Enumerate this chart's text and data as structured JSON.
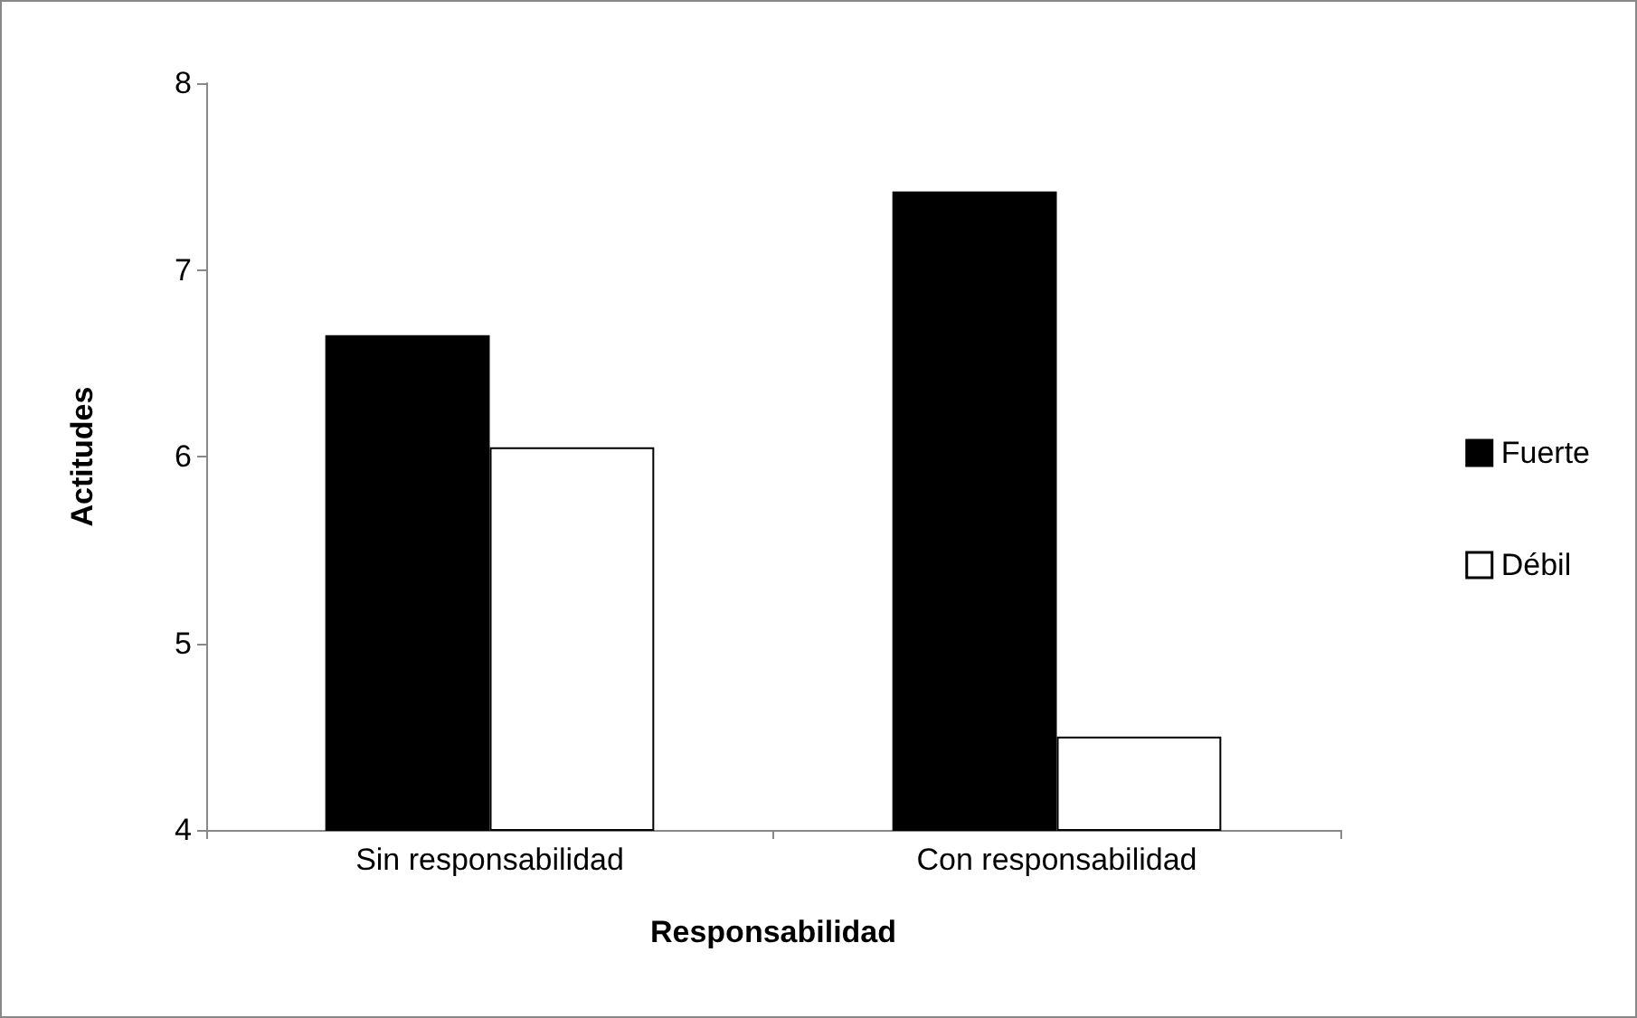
{
  "chart_data": {
    "type": "bar",
    "xlabel": "Responsabilidad",
    "ylabel": "Actitudes",
    "categories": [
      "Sin responsabilidad",
      "Con responsabilidad"
    ],
    "series": [
      {
        "name": "Fuerte",
        "color": "#000000",
        "values": [
          6.65,
          7.42
        ]
      },
      {
        "name": "Débil",
        "color": "#ffffff",
        "values": [
          6.05,
          4.5
        ]
      }
    ],
    "ylim": [
      4,
      8
    ],
    "yticks": [
      4,
      5,
      6,
      7,
      8
    ],
    "grid": false,
    "legend": "right"
  }
}
